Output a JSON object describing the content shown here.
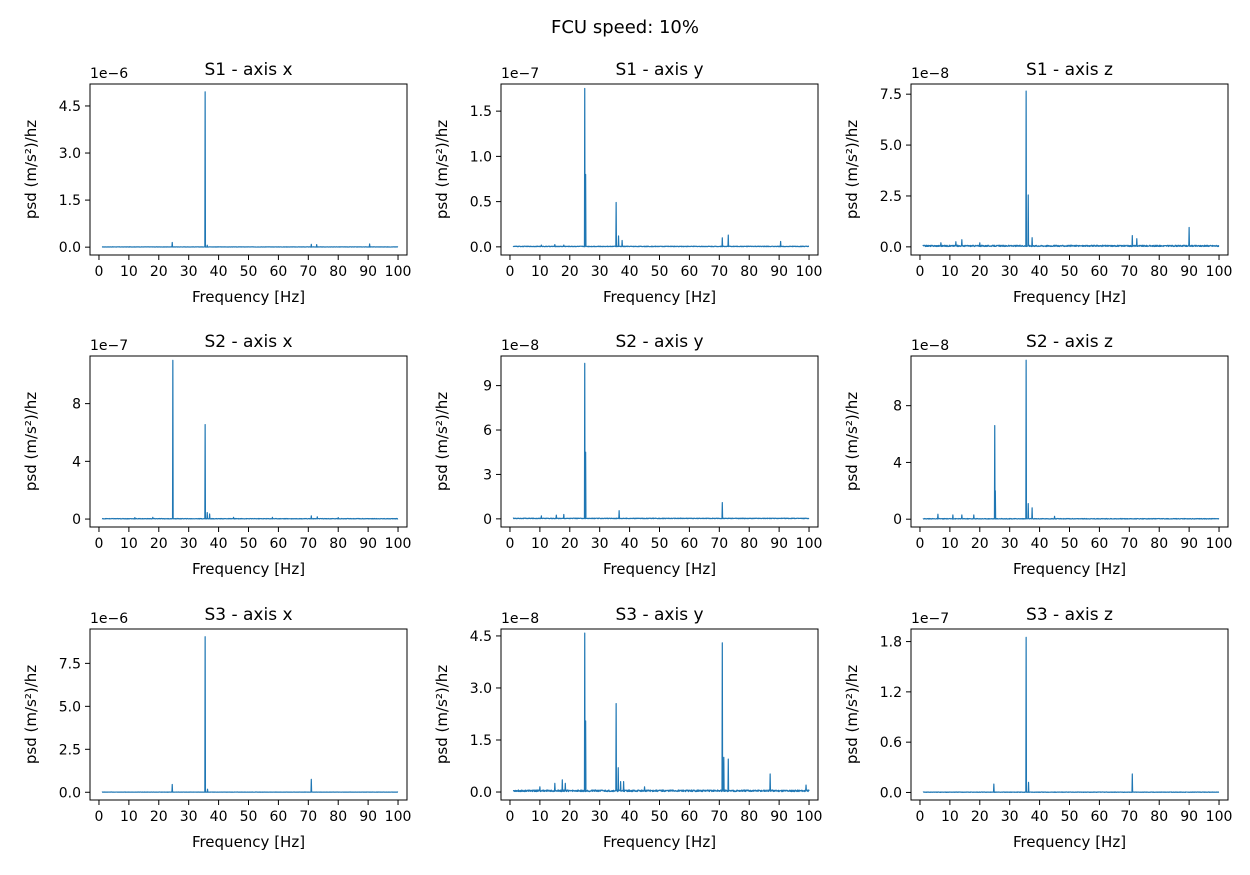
{
  "figure": {
    "suptitle": "FCU speed: 10%",
    "line_color": "#1f77b4"
  },
  "chart_data": [
    {
      "type": "line",
      "title": "S1 - axis x",
      "xlabel": "Frequency [Hz]",
      "ylabel": "psd (m/s²)/hz",
      "multiplier": "1e−6",
      "xlim": [
        -3,
        103
      ],
      "ylim": [
        -0.25,
        5.2
      ],
      "yticks": [
        0,
        1.5,
        3,
        4.5
      ],
      "yticklabels": [
        "0.0",
        "1.5",
        "3.0",
        "4.5"
      ],
      "xticks": [
        0,
        10,
        20,
        30,
        40,
        50,
        60,
        70,
        80,
        90,
        100
      ],
      "noise": 0.012,
      "peaks": [
        [
          24.5,
          0.15
        ],
        [
          35.5,
          4.95
        ],
        [
          36.2,
          0.06
        ],
        [
          71,
          0.09
        ],
        [
          72.8,
          0.08
        ],
        [
          90.5,
          0.1
        ]
      ]
    },
    {
      "type": "line",
      "title": "S1 - axis y",
      "xlabel": "Frequency [Hz]",
      "ylabel": "psd (m/s²)/hz",
      "multiplier": "1e−7",
      "xlim": [
        -3,
        103
      ],
      "ylim": [
        -0.09,
        1.8
      ],
      "yticks": [
        0,
        0.5,
        1.0,
        1.5
      ],
      "yticklabels": [
        "0.0",
        "0.5",
        "1.0",
        "1.5"
      ],
      "xticks": [
        0,
        10,
        20,
        30,
        40,
        50,
        60,
        70,
        80,
        90,
        100
      ],
      "noise": 0.008,
      "peaks": [
        [
          10.5,
          0.02
        ],
        [
          15,
          0.025
        ],
        [
          18,
          0.02
        ],
        [
          25,
          1.75
        ],
        [
          25.3,
          0.8
        ],
        [
          35.5,
          0.49
        ],
        [
          36.3,
          0.12
        ],
        [
          37.5,
          0.07
        ],
        [
          71,
          0.1
        ],
        [
          73,
          0.13
        ],
        [
          90.5,
          0.06
        ]
      ]
    },
    {
      "type": "line",
      "title": "S1 - axis z",
      "xlabel": "Frequency [Hz]",
      "ylabel": "psd (m/s²)/hz",
      "multiplier": "1e−8",
      "xlim": [
        -3,
        103
      ],
      "ylim": [
        -0.4,
        8.0
      ],
      "yticks": [
        0,
        2.5,
        5.0,
        7.5
      ],
      "yticklabels": [
        "0.0",
        "2.5",
        "5.0",
        "7.5"
      ],
      "xticks": [
        0,
        10,
        20,
        30,
        40,
        50,
        60,
        70,
        80,
        90,
        100
      ],
      "noise": 0.08,
      "peaks": [
        [
          7,
          0.2
        ],
        [
          12,
          0.25
        ],
        [
          14,
          0.35
        ],
        [
          20,
          0.2
        ],
        [
          35.5,
          7.65
        ],
        [
          36.2,
          2.55
        ],
        [
          37.5,
          0.45
        ],
        [
          71,
          0.55
        ],
        [
          72.5,
          0.4
        ],
        [
          90,
          0.95
        ]
      ]
    },
    {
      "type": "line",
      "title": "S2 - axis x",
      "xlabel": "Frequency [Hz]",
      "ylabel": "psd (m/s²)/hz",
      "multiplier": "1e−7",
      "xlim": [
        -3,
        103
      ],
      "ylim": [
        -0.55,
        11.3
      ],
      "yticks": [
        0,
        4,
        8
      ],
      "yticklabels": [
        "0",
        "4",
        "8"
      ],
      "xticks": [
        0,
        10,
        20,
        30,
        40,
        50,
        60,
        70,
        80,
        90,
        100
      ],
      "noise": 0.04,
      "peaks": [
        [
          12,
          0.1
        ],
        [
          18,
          0.12
        ],
        [
          24.7,
          11.0
        ],
        [
          35.5,
          6.55
        ],
        [
          36.2,
          0.45
        ],
        [
          37,
          0.35
        ],
        [
          45,
          0.12
        ],
        [
          58,
          0.12
        ],
        [
          71,
          0.22
        ],
        [
          73,
          0.15
        ],
        [
          80,
          0.1
        ]
      ]
    },
    {
      "type": "line",
      "title": "S2 - axis y",
      "xlabel": "Frequency [Hz]",
      "ylabel": "psd (m/s²)/hz",
      "multiplier": "1e−8",
      "xlim": [
        -3,
        103
      ],
      "ylim": [
        -0.55,
        11.0
      ],
      "yticks": [
        0,
        3,
        6,
        9
      ],
      "yticklabels": [
        "0",
        "3",
        "6",
        "9"
      ],
      "xticks": [
        0,
        10,
        20,
        30,
        40,
        50,
        60,
        70,
        80,
        90,
        100
      ],
      "noise": 0.05,
      "peaks": [
        [
          10.5,
          0.2
        ],
        [
          15.5,
          0.25
        ],
        [
          18,
          0.3
        ],
        [
          25,
          10.5
        ],
        [
          25.3,
          4.5
        ],
        [
          36.5,
          0.55
        ],
        [
          71,
          1.1
        ]
      ]
    },
    {
      "type": "line",
      "title": "S2 - axis z",
      "xlabel": "Frequency [Hz]",
      "ylabel": "psd (m/s²)/hz",
      "multiplier": "1e−8",
      "xlim": [
        -3,
        103
      ],
      "ylim": [
        -0.55,
        11.5
      ],
      "yticks": [
        0,
        4,
        8
      ],
      "yticklabels": [
        "0",
        "4",
        "8"
      ],
      "xticks": [
        0,
        10,
        20,
        30,
        40,
        50,
        60,
        70,
        80,
        90,
        100
      ],
      "noise": 0.05,
      "peaks": [
        [
          6,
          0.35
        ],
        [
          11,
          0.3
        ],
        [
          14,
          0.3
        ],
        [
          18,
          0.3
        ],
        [
          25,
          6.6
        ],
        [
          25.2,
          2.0
        ],
        [
          35.5,
          11.2
        ],
        [
          36.2,
          1.1
        ],
        [
          37.5,
          0.8
        ],
        [
          45,
          0.2
        ]
      ]
    },
    {
      "type": "line",
      "title": "S3 - axis x",
      "xlabel": "Frequency [Hz]",
      "ylabel": "psd (m/s²)/hz",
      "multiplier": "1e−6",
      "xlim": [
        -3,
        103
      ],
      "ylim": [
        -0.45,
        9.5
      ],
      "yticks": [
        0,
        2.5,
        5.0,
        7.5
      ],
      "yticklabels": [
        "0.0",
        "2.5",
        "5.0",
        "7.5"
      ],
      "xticks": [
        0,
        10,
        20,
        30,
        40,
        50,
        60,
        70,
        80,
        90,
        100
      ],
      "noise": 0.015,
      "peaks": [
        [
          24.5,
          0.45
        ],
        [
          35.5,
          9.05
        ],
        [
          36.3,
          0.18
        ],
        [
          71,
          0.75
        ]
      ]
    },
    {
      "type": "line",
      "title": "S3 - axis y",
      "xlabel": "Frequency [Hz]",
      "ylabel": "psd (m/s²)/hz",
      "multiplier": "1e−8",
      "xlim": [
        -3,
        103
      ],
      "ylim": [
        -0.23,
        4.7
      ],
      "yticks": [
        0,
        1.5,
        3.0,
        4.5
      ],
      "yticklabels": [
        "0.0",
        "1.5",
        "3.0",
        "4.5"
      ],
      "xticks": [
        0,
        10,
        20,
        30,
        40,
        50,
        60,
        70,
        80,
        90,
        100
      ],
      "noise": 0.06,
      "peaks": [
        [
          10,
          0.15
        ],
        [
          15,
          0.25
        ],
        [
          17.5,
          0.35
        ],
        [
          18.5,
          0.25
        ],
        [
          25,
          4.58
        ],
        [
          25.3,
          2.05
        ],
        [
          35.5,
          2.55
        ],
        [
          36.2,
          0.7
        ],
        [
          37,
          0.3
        ],
        [
          38,
          0.3
        ],
        [
          45,
          0.15
        ],
        [
          71,
          4.3
        ],
        [
          71.5,
          1.0
        ],
        [
          73,
          0.95
        ],
        [
          87,
          0.52
        ],
        [
          99,
          0.2
        ]
      ]
    },
    {
      "type": "line",
      "title": "S3 - axis z",
      "xlabel": "Frequency [Hz]",
      "ylabel": "psd (m/s²)/hz",
      "multiplier": "1e−7",
      "xlim": [
        -3,
        103
      ],
      "ylim": [
        -0.09,
        1.95
      ],
      "yticks": [
        0,
        0.6,
        1.2,
        1.8
      ],
      "yticklabels": [
        "0.0",
        "0.6",
        "1.2",
        "1.8"
      ],
      "xticks": [
        0,
        10,
        20,
        30,
        40,
        50,
        60,
        70,
        80,
        90,
        100
      ],
      "noise": 0.006,
      "peaks": [
        [
          24.7,
          0.1
        ],
        [
          35.5,
          1.85
        ],
        [
          36.3,
          0.12
        ],
        [
          71,
          0.22
        ]
      ]
    }
  ]
}
